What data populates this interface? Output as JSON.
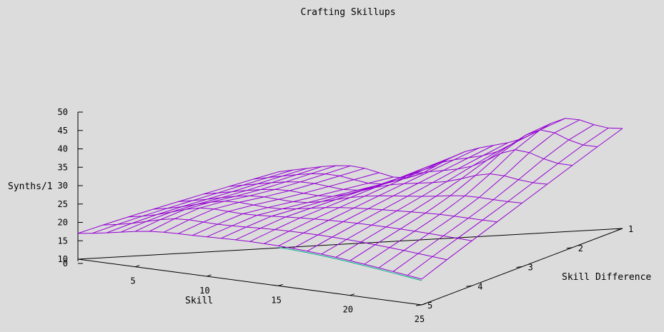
{
  "chart_data": {
    "type": "surface3d",
    "title": "Crafting Skillups",
    "xlabel": "Skill",
    "ylabel": "Skill Difference",
    "zlabel": "Synths/1",
    "x_ticks": [
      "5",
      "10",
      "15",
      "20",
      "25"
    ],
    "x_tick_values": [
      5,
      10,
      15,
      20,
      25
    ],
    "y_ticks": [
      "1",
      "2",
      "3",
      "4",
      "5"
    ],
    "y_tick_values": [
      1,
      2,
      3,
      4,
      5
    ],
    "z_ticks": [
      "0",
      "10",
      "15",
      "20",
      "25",
      "30",
      "35",
      "40",
      "45",
      "50"
    ],
    "z_tick_values": [
      0,
      10,
      15,
      20,
      25,
      30,
      35,
      40,
      45,
      50
    ],
    "xlim": [
      1,
      25
    ],
    "ylim": [
      1,
      5
    ],
    "zlim": [
      10,
      50
    ],
    "grid_resolution": [
      25,
      9
    ],
    "surface_top_color": "#9400d3",
    "surface_bottom_color": "#00b08c",
    "axis_color": "#000000",
    "background": "#dcdcdc"
  }
}
